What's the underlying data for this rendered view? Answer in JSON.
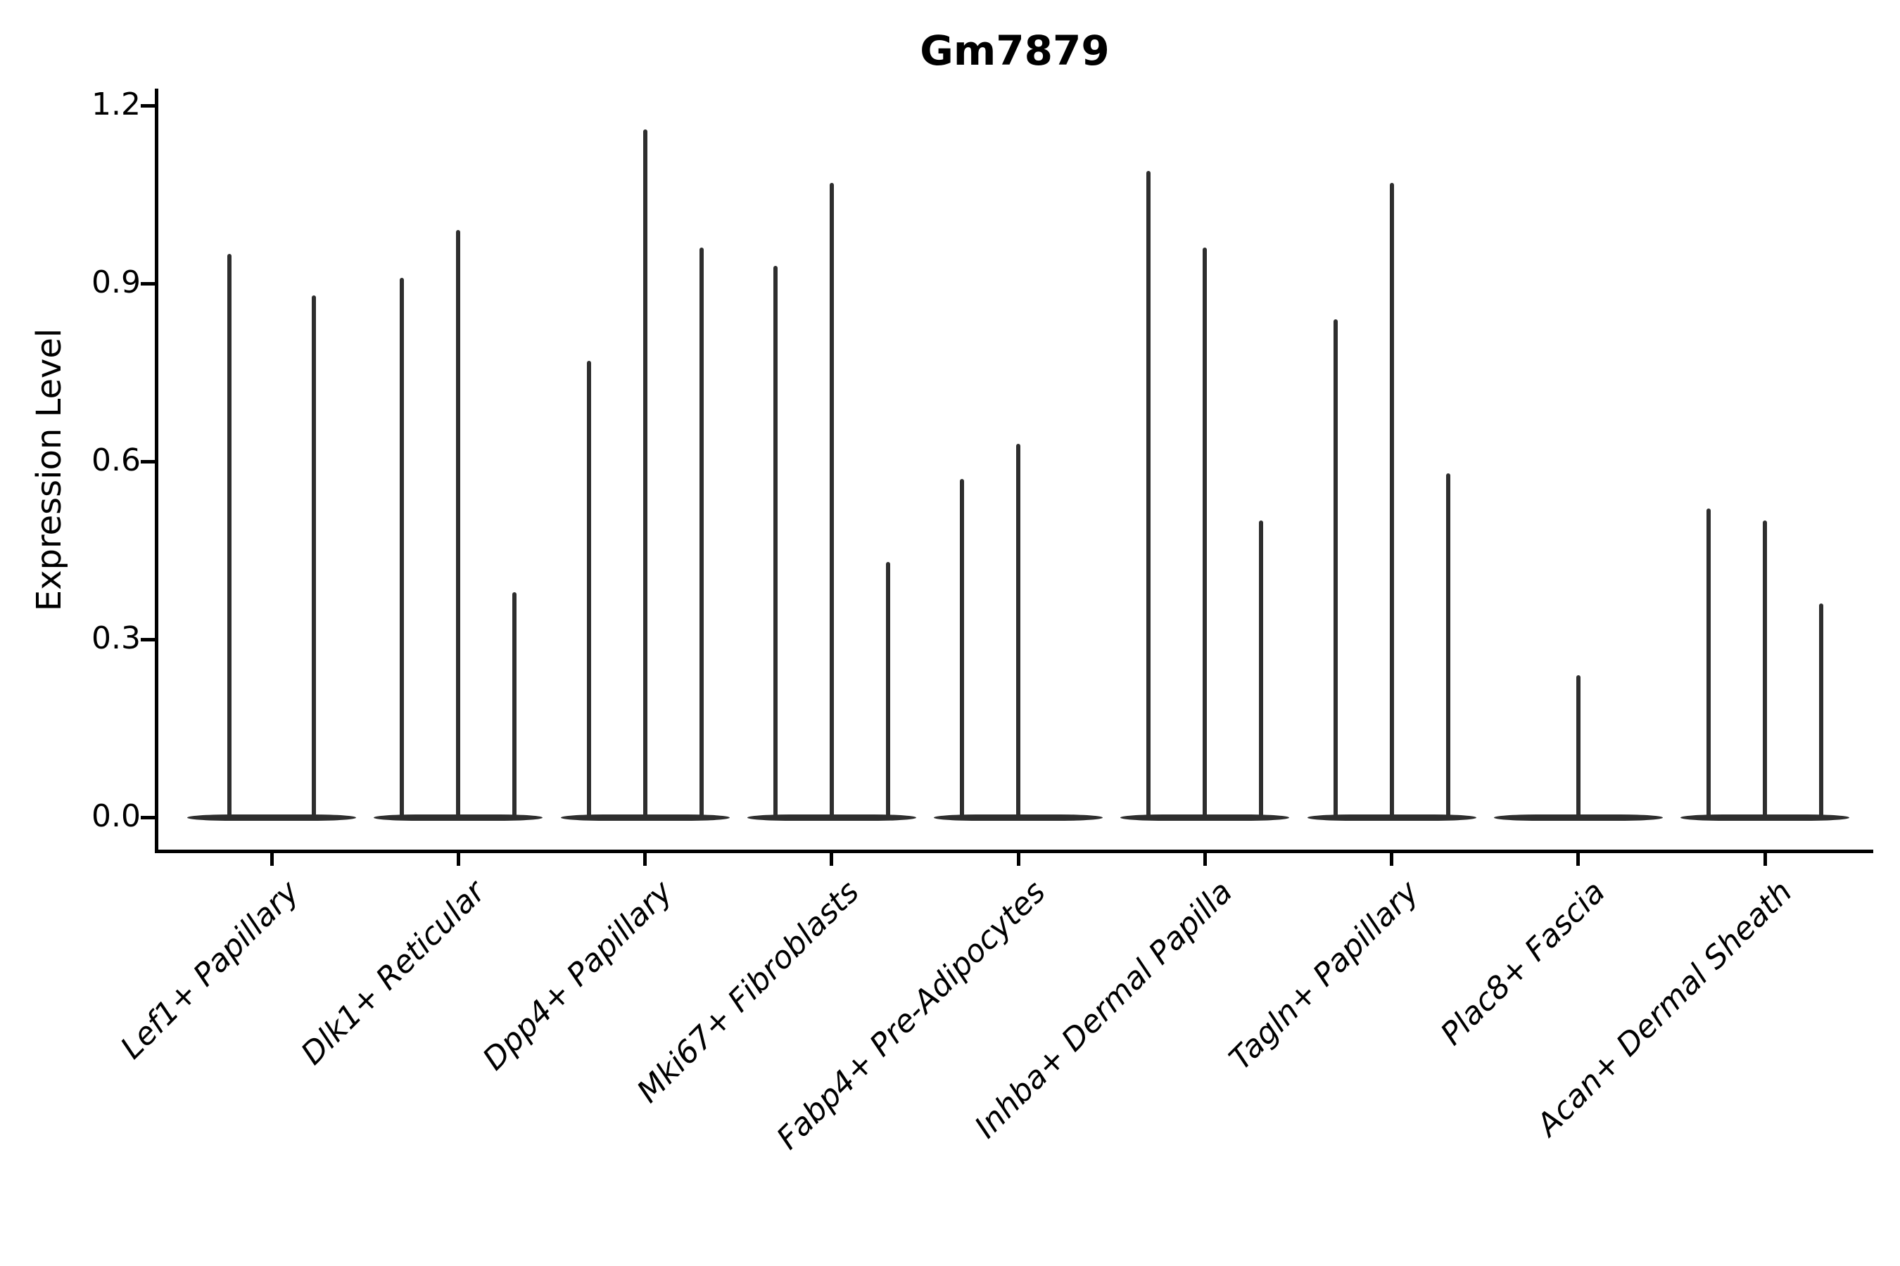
{
  "chart_data": {
    "type": "violin",
    "title": "Gm7879",
    "ylabel": "Expression Level",
    "xlabel": "",
    "ylim": [
      0.0,
      1.2
    ],
    "y_ticks": [
      0.0,
      0.3,
      0.6,
      0.9,
      1.2
    ],
    "y_tick_labels": [
      "0.0",
      "0.3",
      "0.6",
      "0.9",
      "1.2"
    ],
    "grid": "off",
    "legend": "none",
    "style_note": "thin spike-shaped violins rising from flat zero-expression baseline blobs, one baseline per category group",
    "groups": [
      {
        "label": "Lef1+ Papillary",
        "violin_max_values": [
          0.95,
          0.88
        ]
      },
      {
        "label": "Dlk1+ Reticular",
        "violin_max_values": [
          0.91,
          0.99,
          0.38
        ]
      },
      {
        "label": "Dpp4+ Papillary",
        "violin_max_values": [
          0.77,
          1.16,
          0.96
        ]
      },
      {
        "label": "Mki67+ Fibroblasts",
        "violin_max_values": [
          0.93,
          1.07,
          0.43
        ]
      },
      {
        "label": "Fabp4+ Pre-Adipocytes",
        "violin_max_values": [
          0.57,
          0.63,
          0
        ]
      },
      {
        "label": "Inhba+ Dermal Papilla",
        "violin_max_values": [
          1.09,
          0.96,
          0.5
        ]
      },
      {
        "label": "Tagln+ Papillary",
        "violin_max_values": [
          0.84,
          1.07,
          0.58
        ]
      },
      {
        "label": "Plac8+ Fascia",
        "violin_max_values": [
          0,
          0.24,
          0
        ]
      },
      {
        "label": "Acan+ Dermal Sheath",
        "violin_max_values": [
          0.52,
          0.5,
          0.36
        ]
      }
    ],
    "colors": {
      "violin": "#2e2e2e",
      "axis": "#000000",
      "text": "#000000",
      "background": "#ffffff"
    }
  }
}
